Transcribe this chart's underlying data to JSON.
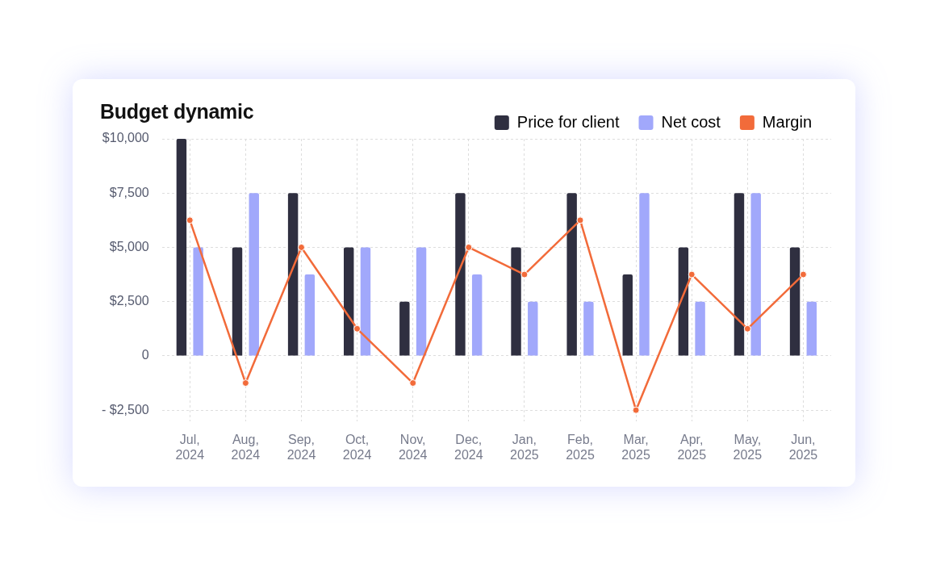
{
  "chart_data": {
    "type": "bar",
    "title": "Budget dynamic",
    "categories": [
      "Jul, 2024",
      "Aug, 2024",
      "Sep, 2024",
      "Oct, 2024",
      "Nov, 2024",
      "Dec, 2024",
      "Jan, 2025",
      "Feb, 2025",
      "Mar, 2025",
      "Apr, 2025",
      "May, 2025",
      "Jun, 2025"
    ],
    "series": [
      {
        "name": "Price for client",
        "color": "#2f2f40",
        "values": [
          10000,
          5000,
          7500,
          5000,
          2500,
          7500,
          5000,
          7500,
          3750,
          5000,
          7500,
          5000
        ]
      },
      {
        "name": "Net cost",
        "color": "#a1a8fb",
        "values": [
          5000,
          7500,
          3750,
          5000,
          5000,
          3750,
          2500,
          2500,
          7500,
          2500,
          7500,
          2500
        ]
      },
      {
        "name": "Margin",
        "type": "line",
        "color": "#f26b3a",
        "values": [
          6250,
          -1250,
          5000,
          1250,
          -1250,
          5000,
          3750,
          6250,
          -2500,
          3750,
          1250,
          3750
        ]
      }
    ],
    "ylim": [
      -3000,
      10000
    ],
    "yticks": [
      {
        "value": -2500,
        "label": "- $2,500"
      },
      {
        "value": 0,
        "label": "0"
      },
      {
        "value": 2500,
        "label": "$2,500"
      },
      {
        "value": 5000,
        "label": "$5,000"
      },
      {
        "value": 7500,
        "label": "$7,500"
      },
      {
        "value": 10000,
        "label": "$10,000"
      }
    ],
    "grid": true,
    "legend": "top right",
    "marker": "circle",
    "line_style": "solid"
  }
}
